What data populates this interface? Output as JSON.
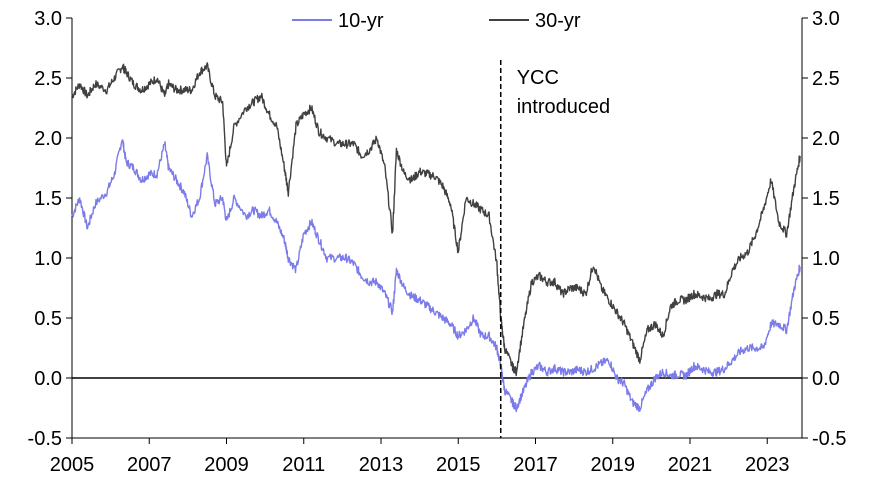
{
  "chart_data": {
    "type": "line",
    "title": "",
    "xlabel": "",
    "ylabel": "",
    "xlim": [
      2005.0,
      2023.9
    ],
    "ylim": [
      -0.5,
      3.0
    ],
    "x_ticks": [
      2005,
      2007,
      2009,
      2011,
      2013,
      2015,
      2017,
      2019,
      2021,
      2023
    ],
    "y_ticks": [
      -0.5,
      0.0,
      0.5,
      1.0,
      1.5,
      2.0,
      2.5,
      3.0
    ],
    "y_tick_labels": [
      "-0.5",
      "0.0",
      "0.5",
      "1.0",
      "1.5",
      "2.0",
      "2.5",
      "3.0"
    ],
    "secondary_y_axis": true,
    "grid": false,
    "zero_line": true,
    "legend_position": "top-center",
    "series": [
      {
        "name": "10-yr",
        "color": "#7b7bea",
        "x": [
          2005.0,
          2005.2,
          2005.4,
          2005.6,
          2005.9,
          2006.1,
          2006.3,
          2006.4,
          2006.6,
          2006.8,
          2007.0,
          2007.2,
          2007.4,
          2007.5,
          2007.7,
          2007.9,
          2008.1,
          2008.3,
          2008.5,
          2008.7,
          2008.9,
          2009.0,
          2009.2,
          2009.5,
          2009.7,
          2009.9,
          2010.1,
          2010.3,
          2010.5,
          2010.6,
          2010.8,
          2011.0,
          2011.2,
          2011.4,
          2011.6,
          2011.9,
          2012.1,
          2012.3,
          2012.5,
          2012.7,
          2012.9,
          2013.1,
          2013.3,
          2013.4,
          2013.6,
          2013.8,
          2014.0,
          2014.2,
          2014.4,
          2014.6,
          2014.8,
          2015.0,
          2015.2,
          2015.4,
          2015.6,
          2015.8,
          2016.0,
          2016.1,
          2016.2,
          2016.4,
          2016.5,
          2016.7,
          2016.9,
          2017.1,
          2017.3,
          2017.5,
          2017.7,
          2017.9,
          2018.1,
          2018.3,
          2018.5,
          2018.7,
          2018.9,
          2019.1,
          2019.3,
          2019.5,
          2019.7,
          2019.9,
          2020.1,
          2020.3,
          2020.5,
          2020.7,
          2020.9,
          2021.1,
          2021.3,
          2021.5,
          2021.7,
          2021.9,
          2022.1,
          2022.3,
          2022.5,
          2022.7,
          2022.9,
          2023.1,
          2023.3,
          2023.5,
          2023.7,
          2023.85
        ],
        "values": [
          1.35,
          1.5,
          1.25,
          1.45,
          1.55,
          1.7,
          2.0,
          1.8,
          1.75,
          1.65,
          1.7,
          1.7,
          1.95,
          1.75,
          1.65,
          1.55,
          1.35,
          1.5,
          1.85,
          1.45,
          1.5,
          1.3,
          1.5,
          1.35,
          1.4,
          1.35,
          1.4,
          1.3,
          1.15,
          1.0,
          0.9,
          1.2,
          1.3,
          1.15,
          1.0,
          1.0,
          1.0,
          0.95,
          0.85,
          0.8,
          0.8,
          0.7,
          0.55,
          0.9,
          0.75,
          0.68,
          0.65,
          0.6,
          0.55,
          0.5,
          0.45,
          0.35,
          0.4,
          0.5,
          0.35,
          0.35,
          0.25,
          0.1,
          -0.1,
          -0.2,
          -0.25,
          -0.1,
          0.05,
          0.1,
          0.05,
          0.08,
          0.05,
          0.05,
          0.07,
          0.05,
          0.08,
          0.12,
          0.15,
          0.0,
          -0.05,
          -0.2,
          -0.25,
          -0.1,
          0.0,
          0.05,
          0.02,
          0.03,
          0.02,
          0.1,
          0.08,
          0.05,
          0.05,
          0.08,
          0.15,
          0.22,
          0.25,
          0.25,
          0.25,
          0.45,
          0.45,
          0.4,
          0.75,
          0.93
        ]
      },
      {
        "name": "30-yr",
        "color": "#404040",
        "x": [
          2005.0,
          2005.2,
          2005.4,
          2005.6,
          2005.9,
          2006.1,
          2006.3,
          2006.4,
          2006.6,
          2006.8,
          2007.0,
          2007.2,
          2007.4,
          2007.5,
          2007.7,
          2007.9,
          2008.1,
          2008.3,
          2008.5,
          2008.7,
          2008.9,
          2009.0,
          2009.2,
          2009.5,
          2009.7,
          2009.9,
          2010.1,
          2010.3,
          2010.5,
          2010.6,
          2010.8,
          2011.0,
          2011.2,
          2011.4,
          2011.6,
          2011.9,
          2012.1,
          2012.3,
          2012.5,
          2012.7,
          2012.9,
          2013.1,
          2013.3,
          2013.4,
          2013.6,
          2013.8,
          2014.0,
          2014.2,
          2014.4,
          2014.6,
          2014.8,
          2015.0,
          2015.2,
          2015.4,
          2015.6,
          2015.8,
          2016.0,
          2016.1,
          2016.2,
          2016.4,
          2016.5,
          2016.7,
          2016.9,
          2017.1,
          2017.3,
          2017.5,
          2017.7,
          2017.9,
          2018.1,
          2018.3,
          2018.5,
          2018.7,
          2018.9,
          2019.1,
          2019.3,
          2019.5,
          2019.7,
          2019.9,
          2020.1,
          2020.3,
          2020.5,
          2020.7,
          2020.9,
          2021.1,
          2021.3,
          2021.5,
          2021.7,
          2021.9,
          2022.1,
          2022.3,
          2022.5,
          2022.7,
          2022.9,
          2023.1,
          2023.3,
          2023.5,
          2023.7,
          2023.85
        ],
        "values": [
          2.35,
          2.45,
          2.35,
          2.45,
          2.4,
          2.5,
          2.6,
          2.55,
          2.45,
          2.4,
          2.45,
          2.5,
          2.35,
          2.45,
          2.4,
          2.4,
          2.4,
          2.55,
          2.6,
          2.35,
          2.3,
          1.75,
          2.1,
          2.25,
          2.3,
          2.35,
          2.2,
          2.1,
          1.75,
          1.55,
          2.1,
          2.2,
          2.25,
          2.05,
          2.0,
          1.95,
          1.95,
          1.95,
          1.85,
          1.9,
          2.0,
          1.75,
          1.2,
          1.9,
          1.7,
          1.65,
          1.72,
          1.7,
          1.68,
          1.6,
          1.45,
          1.05,
          1.5,
          1.45,
          1.4,
          1.35,
          0.95,
          0.5,
          0.25,
          0.1,
          0.05,
          0.45,
          0.8,
          0.85,
          0.8,
          0.8,
          0.7,
          0.75,
          0.75,
          0.7,
          0.95,
          0.75,
          0.65,
          0.55,
          0.45,
          0.3,
          0.15,
          0.4,
          0.45,
          0.35,
          0.6,
          0.65,
          0.65,
          0.7,
          0.68,
          0.66,
          0.7,
          0.7,
          0.9,
          1.0,
          1.05,
          1.2,
          1.4,
          1.65,
          1.3,
          1.2,
          1.6,
          1.85
        ]
      }
    ],
    "annotations": [
      {
        "x": 2016.1,
        "text_lines": [
          "YCC",
          "introduced"
        ],
        "style": "dashed-vertical-line"
      }
    ]
  }
}
